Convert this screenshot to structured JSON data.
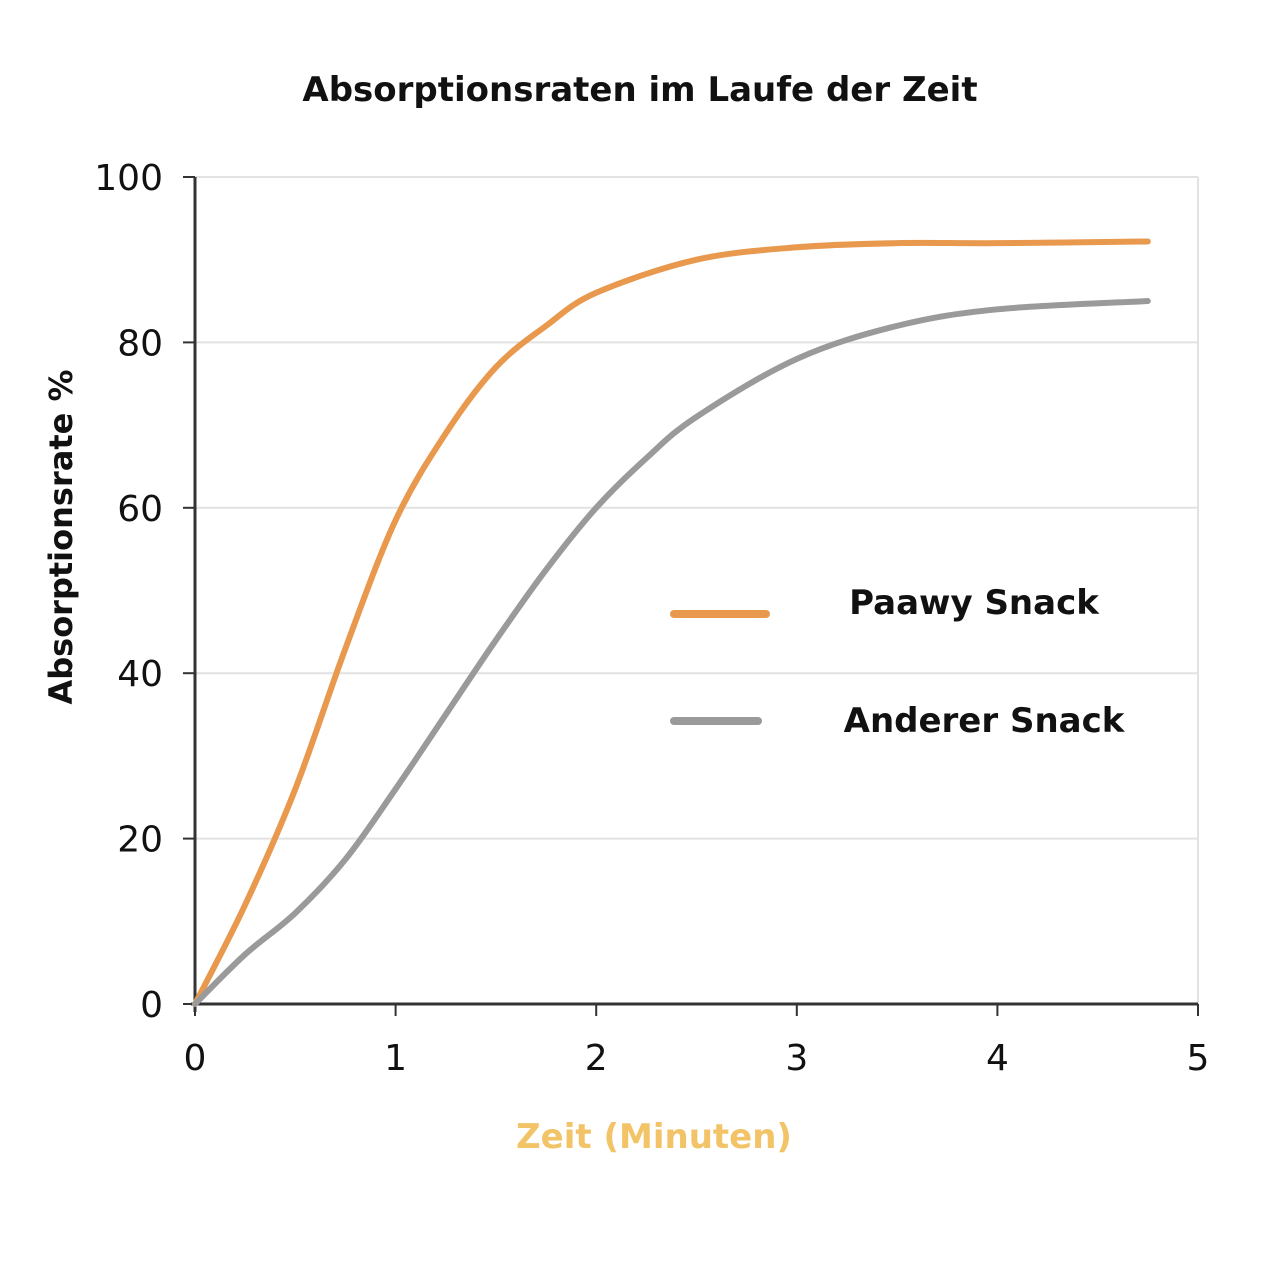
{
  "chart_data": {
    "type": "line",
    "title": "Absorptionsraten im Laufe der Zeit",
    "xlabel": "Zeit (Minuten)",
    "ylabel": "Absorptionsrate %",
    "xlim": [
      0,
      5
    ],
    "ylim": [
      0,
      100
    ],
    "xticks": [
      "0",
      "1",
      "2",
      "3",
      "4",
      "5"
    ],
    "yticks": [
      "0",
      "20",
      "40",
      "60",
      "80",
      "100"
    ],
    "grid": "horizontal",
    "legend_position": "center-right",
    "xlabel_color": "#F2C467",
    "series": [
      {
        "name": "Paawy Snack",
        "color": "#E8994E",
        "x": [
          0,
          0.25,
          0.5,
          0.75,
          1,
          1.25,
          1.5,
          1.75,
          2,
          2.5,
          3,
          3.5,
          4,
          4.75
        ],
        "y": [
          0,
          12,
          26,
          43,
          58.5,
          69,
          77,
          82,
          86,
          90,
          91.5,
          92,
          92,
          92.2
        ]
      },
      {
        "name": "Anderer Snack",
        "color": "#9A9A9A",
        "x": [
          0,
          0.25,
          0.5,
          0.75,
          1,
          1.25,
          1.5,
          1.75,
          2,
          2.25,
          2.5,
          3,
          3.5,
          4,
          4.75
        ],
        "y": [
          0,
          6,
          11,
          17.5,
          26,
          35,
          44,
          52.5,
          60,
          66,
          71,
          78,
          82,
          84,
          85
        ]
      }
    ]
  }
}
